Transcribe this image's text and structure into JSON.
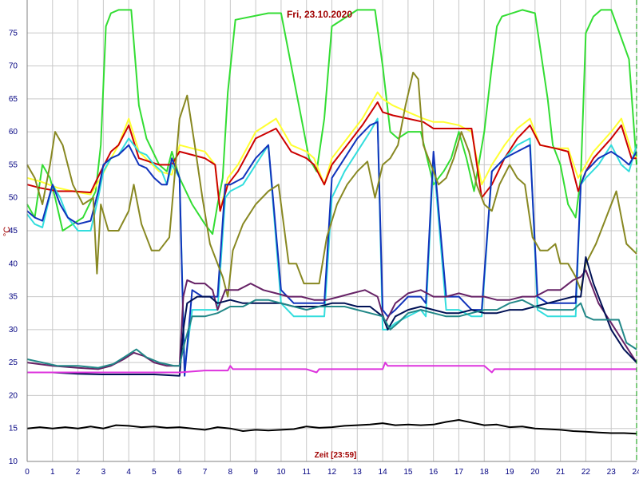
{
  "chart_data": {
    "type": "line",
    "title": "Fri, 23.10.2020",
    "xlabel": "Zeit [23:59]",
    "ylabel": "°C",
    "xlim": [
      0,
      24
    ],
    "ylim": [
      10,
      80
    ],
    "xticks": [
      0,
      1,
      2,
      3,
      4,
      5,
      6,
      7,
      8,
      9,
      10,
      11,
      12,
      13,
      14,
      15,
      16,
      17,
      18,
      19,
      20,
      21,
      22,
      23,
      24
    ],
    "yticks": [
      10,
      15,
      20,
      25,
      30,
      35,
      40,
      45,
      50,
      55,
      60,
      65,
      70,
      75
    ],
    "grid": true,
    "series": [
      {
        "color": "#33dd33",
        "x": [
          0,
          0.3,
          0.6,
          0.9,
          1.1,
          1.4,
          1.8,
          2.2,
          2.7,
          2.9,
          3.1,
          3.3,
          3.6,
          4.1,
          4.4,
          4.7,
          5.2,
          5.5,
          5.7,
          6,
          6.5,
          7,
          7.3,
          7.5,
          7.7,
          7.9,
          8.2,
          9.5,
          10,
          10.8,
          11.1,
          11.4,
          11.7,
          12,
          13,
          13.7,
          14,
          14.3,
          14.6,
          15,
          15.5,
          16,
          16.4,
          16.7,
          17,
          17.3,
          17.6,
          18,
          18.3,
          18.5,
          18.7,
          19.5,
          20,
          20.5,
          20.7,
          21,
          21.3,
          21.6,
          21.8,
          22,
          22.3,
          22.6,
          23,
          23.7,
          24
        ],
        "y": [
          49,
          47,
          55,
          53,
          50,
          45,
          46,
          47,
          51,
          58,
          76,
          78,
          78.5,
          78.5,
          64,
          59,
          55,
          54,
          57,
          53,
          49,
          46,
          44.5,
          49,
          53,
          66,
          77,
          78,
          78,
          62,
          56,
          54,
          62,
          76,
          78.5,
          78.5,
          70,
          60,
          59,
          60,
          60,
          52,
          54,
          56,
          60,
          56,
          51,
          60,
          70,
          76,
          77.5,
          78.5,
          78,
          65,
          58,
          55,
          49,
          47,
          53,
          75,
          77.5,
          78.5,
          78.5,
          71,
          55
        ]
      },
      {
        "color": "#ffff33",
        "x": [
          0,
          0.5,
          1.2,
          1.8,
          2.5,
          2.9,
          3.3,
          3.6,
          4,
          4.4,
          4.8,
          5.2,
          5.7,
          6,
          6.5,
          7,
          7.4,
          7.6,
          7.9,
          8.3,
          9,
          9.8,
          10.4,
          11,
          11.3,
          11.7,
          12,
          12.6,
          13.2,
          13.8,
          14,
          14.4,
          15,
          15.6,
          16,
          16.4,
          17,
          17.5,
          17.9,
          18.3,
          18.8,
          19.3,
          19.8,
          20.2,
          20.8,
          21.3,
          21.7,
          22,
          22.3,
          23,
          23.4,
          23.8,
          24
        ],
        "y": [
          53,
          52.5,
          51.5,
          51,
          50.5,
          53,
          56,
          58,
          62,
          57,
          55.5,
          54,
          53.5,
          58,
          57.5,
          57,
          55,
          48,
          53,
          55,
          60,
          62,
          58,
          57,
          56,
          52,
          56,
          59,
          62,
          66,
          65,
          64,
          63,
          62,
          61.5,
          61.5,
          61,
          60,
          52,
          55,
          58,
          60.5,
          62,
          58,
          57.5,
          57.5,
          53,
          55,
          57,
          60,
          62,
          57,
          56
        ]
      },
      {
        "color": "#cc0000",
        "x": [
          0,
          0.5,
          1.2,
          1.8,
          2.5,
          2.9,
          3.3,
          3.6,
          4,
          4.4,
          4.8,
          5.2,
          5.7,
          6,
          6.5,
          7,
          7.4,
          7.6,
          7.9,
          8.3,
          9,
          9.8,
          10.4,
          11,
          11.3,
          11.7,
          12,
          12.6,
          13.2,
          13.8,
          14,
          14.4,
          15,
          15.6,
          16,
          16.4,
          17,
          17.5,
          17.9,
          18.3,
          18.8,
          19.3,
          19.8,
          20.2,
          20.8,
          21.3,
          21.7,
          22,
          22.3,
          23,
          23.4,
          23.8,
          24
        ],
        "y": [
          52,
          51.5,
          51,
          51,
          50.8,
          54,
          57,
          58,
          61,
          56,
          55.5,
          55,
          55,
          57,
          56.5,
          56,
          55,
          48,
          52,
          54,
          59,
          60.5,
          57,
          56,
          55,
          52,
          55,
          58,
          61,
          64.5,
          63,
          62.5,
          62,
          61.5,
          60.5,
          60.5,
          60.5,
          60.5,
          50,
          52,
          56,
          59,
          61,
          58,
          57.5,
          57,
          51,
          54,
          56,
          59,
          61,
          56,
          56
        ]
      },
      {
        "color": "#33dddd",
        "x": [
          0,
          0.3,
          0.6,
          1,
          1.3,
          1.6,
          2,
          2.5,
          2.8,
          3,
          3.3,
          3.6,
          4,
          4.4,
          4.7,
          5,
          5.3,
          5.5,
          5.7,
          6,
          6.2,
          6.5,
          6.9,
          7.3,
          7.5,
          7.8,
          8,
          8.5,
          9,
          9.5,
          10,
          10.5,
          11,
          11.4,
          11.7,
          12,
          12.5,
          13,
          13.5,
          13.8,
          14,
          14.2,
          14.5,
          15,
          15.5,
          15.7,
          16,
          16.5,
          17,
          17.5,
          17.9,
          18.3,
          18.8,
          19.3,
          19.8,
          20.1,
          20.5,
          21,
          21.3,
          21.6,
          21.8,
          22,
          22.5,
          23,
          23.4,
          23.7,
          24
        ],
        "y": [
          47.5,
          46,
          45.5,
          52,
          50,
          47,
          45,
          45,
          50,
          54,
          56,
          56.5,
          59,
          57,
          56.5,
          55,
          54,
          52,
          55,
          53,
          24,
          33,
          33,
          33,
          33,
          50,
          51,
          52,
          55,
          58,
          34,
          32,
          32,
          32,
          32,
          50,
          54,
          57,
          60,
          62,
          30,
          30,
          31,
          32,
          33,
          32,
          56,
          33,
          33,
          32,
          32,
          54,
          56,
          58,
          59,
          33,
          32,
          32,
          32,
          32,
          52,
          53,
          55,
          58,
          55,
          54,
          58
        ]
      },
      {
        "color": "#1133bb",
        "x": [
          0,
          0.3,
          0.6,
          1,
          1.3,
          1.6,
          2,
          2.5,
          2.8,
          3,
          3.3,
          3.6,
          4,
          4.4,
          4.7,
          5,
          5.3,
          5.5,
          5.7,
          6,
          6.2,
          6.5,
          6.9,
          7.3,
          7.5,
          7.8,
          8,
          8.5,
          9,
          9.5,
          10,
          10.5,
          11,
          11.4,
          11.7,
          12,
          12.5,
          13,
          13.5,
          13.8,
          14,
          14.2,
          14.5,
          15,
          15.5,
          15.7,
          16,
          16.5,
          17,
          17.5,
          17.9,
          18.3,
          18.8,
          19.3,
          19.8,
          20.1,
          20.5,
          21,
          21.3,
          21.6,
          21.8,
          22,
          22.5,
          23,
          23.4,
          23.7,
          24
        ],
        "y": [
          48,
          47,
          46.5,
          52,
          49,
          47,
          46,
          46.5,
          51,
          55,
          56,
          56.5,
          58,
          55,
          54.5,
          53,
          52,
          52,
          56,
          53,
          23,
          36,
          35,
          35,
          35,
          52,
          52,
          53,
          56,
          58,
          36,
          34,
          34,
          34,
          34,
          53,
          56,
          59,
          61,
          61.5,
          33,
          32,
          33,
          35,
          35,
          34,
          57,
          35,
          35,
          33,
          33,
          54,
          56,
          57,
          58,
          35,
          34,
          34,
          34,
          34,
          52,
          54,
          56,
          57,
          56,
          55,
          57
        ]
      },
      {
        "color": "#888822",
        "x": [
          0,
          0.3,
          0.6,
          0.9,
          1.1,
          1.4,
          1.8,
          2.2,
          2.6,
          2.75,
          2.9,
          3.2,
          3.6,
          4,
          4.2,
          4.5,
          4.9,
          5.2,
          5.6,
          6,
          6.3,
          6.6,
          6.9,
          7.2,
          7.5,
          7.7,
          7.9,
          8.1,
          8.5,
          9,
          9.5,
          9.9,
          10.3,
          10.6,
          10.9,
          11.2,
          11.5,
          11.8,
          12.2,
          12.6,
          13,
          13.4,
          13.7,
          14,
          14.3,
          14.6,
          14.9,
          15.2,
          15.4,
          15.6,
          15.9,
          16.2,
          16.5,
          16.8,
          17.1,
          17.4,
          17.7,
          18,
          18.3,
          18.6,
          19,
          19.3,
          19.6,
          19.9,
          20.2,
          20.5,
          20.8,
          21,
          21.3,
          21.6,
          21.8,
          22,
          22.4,
          22.8,
          23.2,
          23.6,
          24
        ],
        "y": [
          55,
          53,
          49,
          55,
          60,
          58,
          52,
          49,
          50,
          38.5,
          49,
          45,
          45,
          48,
          52,
          46,
          42,
          42,
          44,
          62,
          65.5,
          58,
          50,
          43,
          40,
          38,
          35,
          42,
          46,
          49,
          51,
          52,
          40,
          40,
          37,
          37,
          37,
          44,
          49,
          52,
          54,
          55.5,
          50,
          55,
          56,
          58,
          64,
          69,
          68,
          58,
          55,
          52,
          53,
          56,
          60,
          57,
          52,
          49,
          48,
          52,
          55,
          53,
          52,
          44,
          42,
          42,
          43,
          40,
          40,
          38,
          36,
          40,
          43,
          47,
          51,
          43,
          41.5
        ]
      },
      {
        "color": "#662266",
        "x": [
          0,
          1,
          2,
          2.8,
          3.3,
          3.8,
          4.2,
          4.6,
          5,
          5.5,
          6,
          6.15,
          6.3,
          6.6,
          7,
          7.3,
          7.5,
          7.8,
          8.3,
          8.8,
          9.3,
          9.8,
          10.3,
          10.8,
          11.3,
          11.8,
          12.3,
          12.8,
          13.3,
          13.8,
          14.1,
          14.5,
          15,
          15.5,
          16,
          16.5,
          17,
          17.5,
          18,
          18.5,
          19,
          19.5,
          20,
          20.5,
          21,
          21.5,
          21.8,
          22,
          22.2,
          22.5,
          23,
          23.5,
          24
        ],
        "y": [
          25,
          24.5,
          24.2,
          24,
          24.5,
          25.5,
          26.5,
          26,
          25,
          24.5,
          24.5,
          35,
          37.5,
          37,
          37,
          36,
          33,
          36,
          36,
          37,
          36,
          35.5,
          35,
          35,
          34.5,
          34.5,
          35,
          35.5,
          36,
          35,
          31,
          34,
          35.5,
          36,
          35,
          35,
          35.5,
          35,
          35,
          34.5,
          34.5,
          35,
          35,
          36,
          36,
          37.5,
          38,
          39,
          37,
          34,
          31,
          28,
          25
        ]
      },
      {
        "color": "#001155",
        "x": [
          0,
          1,
          2,
          3,
          4,
          5,
          6,
          6.15,
          6.3,
          6.7,
          7.2,
          7.5,
          8,
          8.5,
          9,
          9.5,
          10,
          10.5,
          11,
          11.5,
          12,
          12.5,
          13,
          13.5,
          14,
          14.2,
          14.5,
          15,
          15.5,
          16,
          16.5,
          17,
          17.5,
          18,
          18.5,
          19,
          19.5,
          20,
          20.5,
          21,
          21.5,
          21.8,
          22,
          22.3,
          22.6,
          23,
          23.5,
          24
        ],
        "y": [
          23.5,
          23.5,
          23.3,
          23.2,
          23.2,
          23.2,
          23,
          30,
          34,
          35,
          35,
          34,
          34.5,
          34,
          34,
          34,
          34,
          33.5,
          33.5,
          33.5,
          34,
          34,
          33.5,
          33.5,
          32,
          30,
          32,
          33,
          33.5,
          33,
          32.5,
          32.5,
          33,
          32.5,
          32.5,
          33,
          33,
          33.5,
          34,
          34.5,
          35,
          35,
          41,
          37,
          34,
          30,
          27,
          25
        ]
      },
      {
        "color": "#228888",
        "x": [
          0,
          0.6,
          1.2,
          2,
          2.8,
          3.4,
          3.9,
          4.3,
          4.7,
          5.2,
          5.8,
          6,
          6.2,
          6.5,
          7,
          7.5,
          8,
          8.5,
          9,
          9.5,
          10,
          10.5,
          11,
          11.5,
          12,
          12.5,
          13,
          13.5,
          14,
          14.3,
          14.6,
          15,
          15.5,
          16,
          16.5,
          17,
          17.5,
          18,
          18.5,
          19,
          19.5,
          20,
          20.5,
          21,
          21.5,
          21.8,
          22,
          22.3,
          22.6,
          23,
          23.3,
          23.6,
          24
        ],
        "y": [
          25.5,
          25,
          24.5,
          24.5,
          24.2,
          24.8,
          26,
          27,
          25.8,
          25,
          24.5,
          24.5,
          28,
          32,
          32,
          32.5,
          33.5,
          33.5,
          34.5,
          34.5,
          34,
          33.5,
          33,
          33.5,
          33.5,
          33.5,
          33,
          32.5,
          32,
          30,
          31,
          32.5,
          33,
          32.5,
          32,
          32,
          32.5,
          33,
          33,
          34,
          34.5,
          33.5,
          33,
          33,
          33,
          34,
          32,
          31.5,
          31.5,
          31.5,
          31.5,
          28,
          27
        ]
      },
      {
        "color": "#dd33dd",
        "x": [
          0,
          1,
          2,
          3,
          4,
          5,
          6,
          7,
          7.9,
          8,
          8.1,
          9,
          10,
          11,
          11.4,
          11.5,
          11.6,
          12,
          13,
          14,
          14.1,
          14.2,
          15,
          16,
          17,
          18,
          18.3,
          18.4,
          19,
          20,
          21,
          22,
          23,
          24
        ],
        "y": [
          23.5,
          23.5,
          23.5,
          23.5,
          23.5,
          23.5,
          23.5,
          23.8,
          23.8,
          24.5,
          24,
          24,
          24,
          24,
          23.5,
          24,
          24,
          24,
          24,
          24,
          25,
          24.5,
          24.5,
          24.5,
          24.5,
          24.5,
          23.5,
          24,
          24,
          24,
          24,
          24,
          24,
          24
        ]
      },
      {
        "color": "#000000",
        "x": [
          0,
          0.5,
          1,
          1.5,
          2,
          2.5,
          3,
          3.5,
          4,
          4.5,
          5,
          5.5,
          6,
          6.5,
          7,
          7.5,
          8,
          8.5,
          9,
          9.5,
          10,
          10.5,
          11,
          11.5,
          12,
          12.5,
          13,
          13.5,
          14,
          14.5,
          15,
          15.5,
          16,
          16.5,
          17,
          17.5,
          18,
          18.5,
          19,
          19.5,
          20,
          20.5,
          21,
          21.5,
          22,
          22.5,
          23,
          23.5,
          24
        ],
        "y": [
          15,
          15.2,
          15,
          15.2,
          15,
          15.3,
          15,
          15.5,
          15.4,
          15.2,
          15.3,
          15.1,
          15.2,
          15,
          14.8,
          15.2,
          15,
          14.6,
          14.8,
          14.7,
          14.8,
          14.9,
          15.3,
          15.1,
          15.2,
          15.4,
          15.5,
          15.6,
          15.8,
          15.5,
          15.6,
          15.5,
          15.6,
          16,
          16.3,
          15.9,
          15.5,
          15.6,
          15.2,
          15.3,
          15,
          14.9,
          14.8,
          14.6,
          14.5,
          14.4,
          14.3,
          14.3,
          14.2
        ]
      }
    ]
  }
}
